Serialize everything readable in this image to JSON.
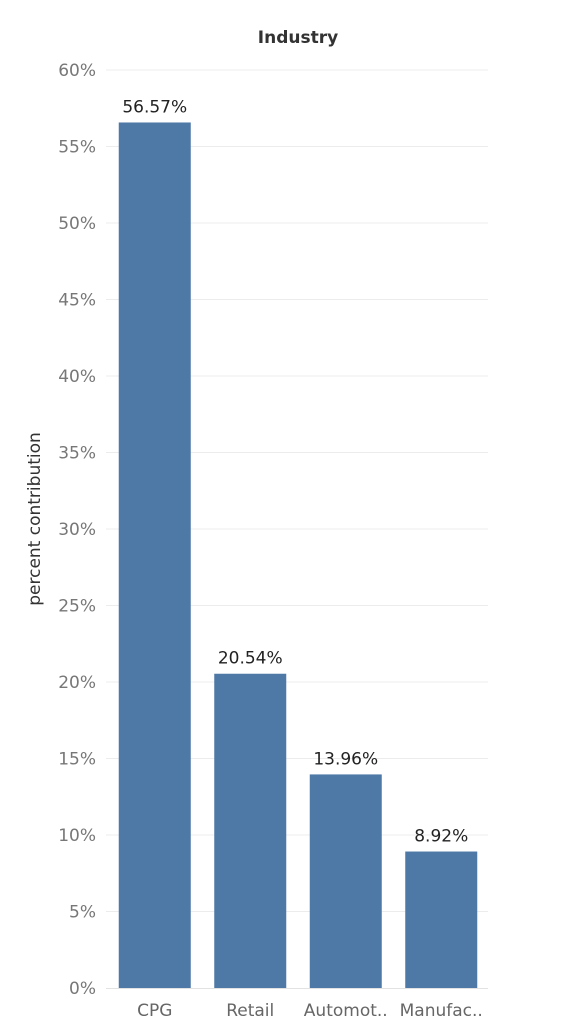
{
  "chart_data": {
    "type": "bar",
    "title": "Industry",
    "xlabel": "",
    "ylabel": "percent contribution",
    "categories": [
      "CPG",
      "Retail",
      "Automot..",
      "Manufac.."
    ],
    "values": [
      56.57,
      20.54,
      13.96,
      8.92
    ],
    "data_labels": [
      "56.57%",
      "20.54%",
      "13.96%",
      "8.92%"
    ],
    "ylim": [
      0,
      60
    ],
    "yticks": [
      0,
      5,
      10,
      15,
      20,
      25,
      30,
      35,
      40,
      45,
      50,
      55,
      60
    ],
    "ytick_labels": [
      "0%",
      "5%",
      "10%",
      "15%",
      "20%",
      "25%",
      "30%",
      "35%",
      "40%",
      "45%",
      "50%",
      "55%",
      "60%"
    ],
    "bar_color": "#4e79a7",
    "grid": true,
    "legend": "none"
  }
}
